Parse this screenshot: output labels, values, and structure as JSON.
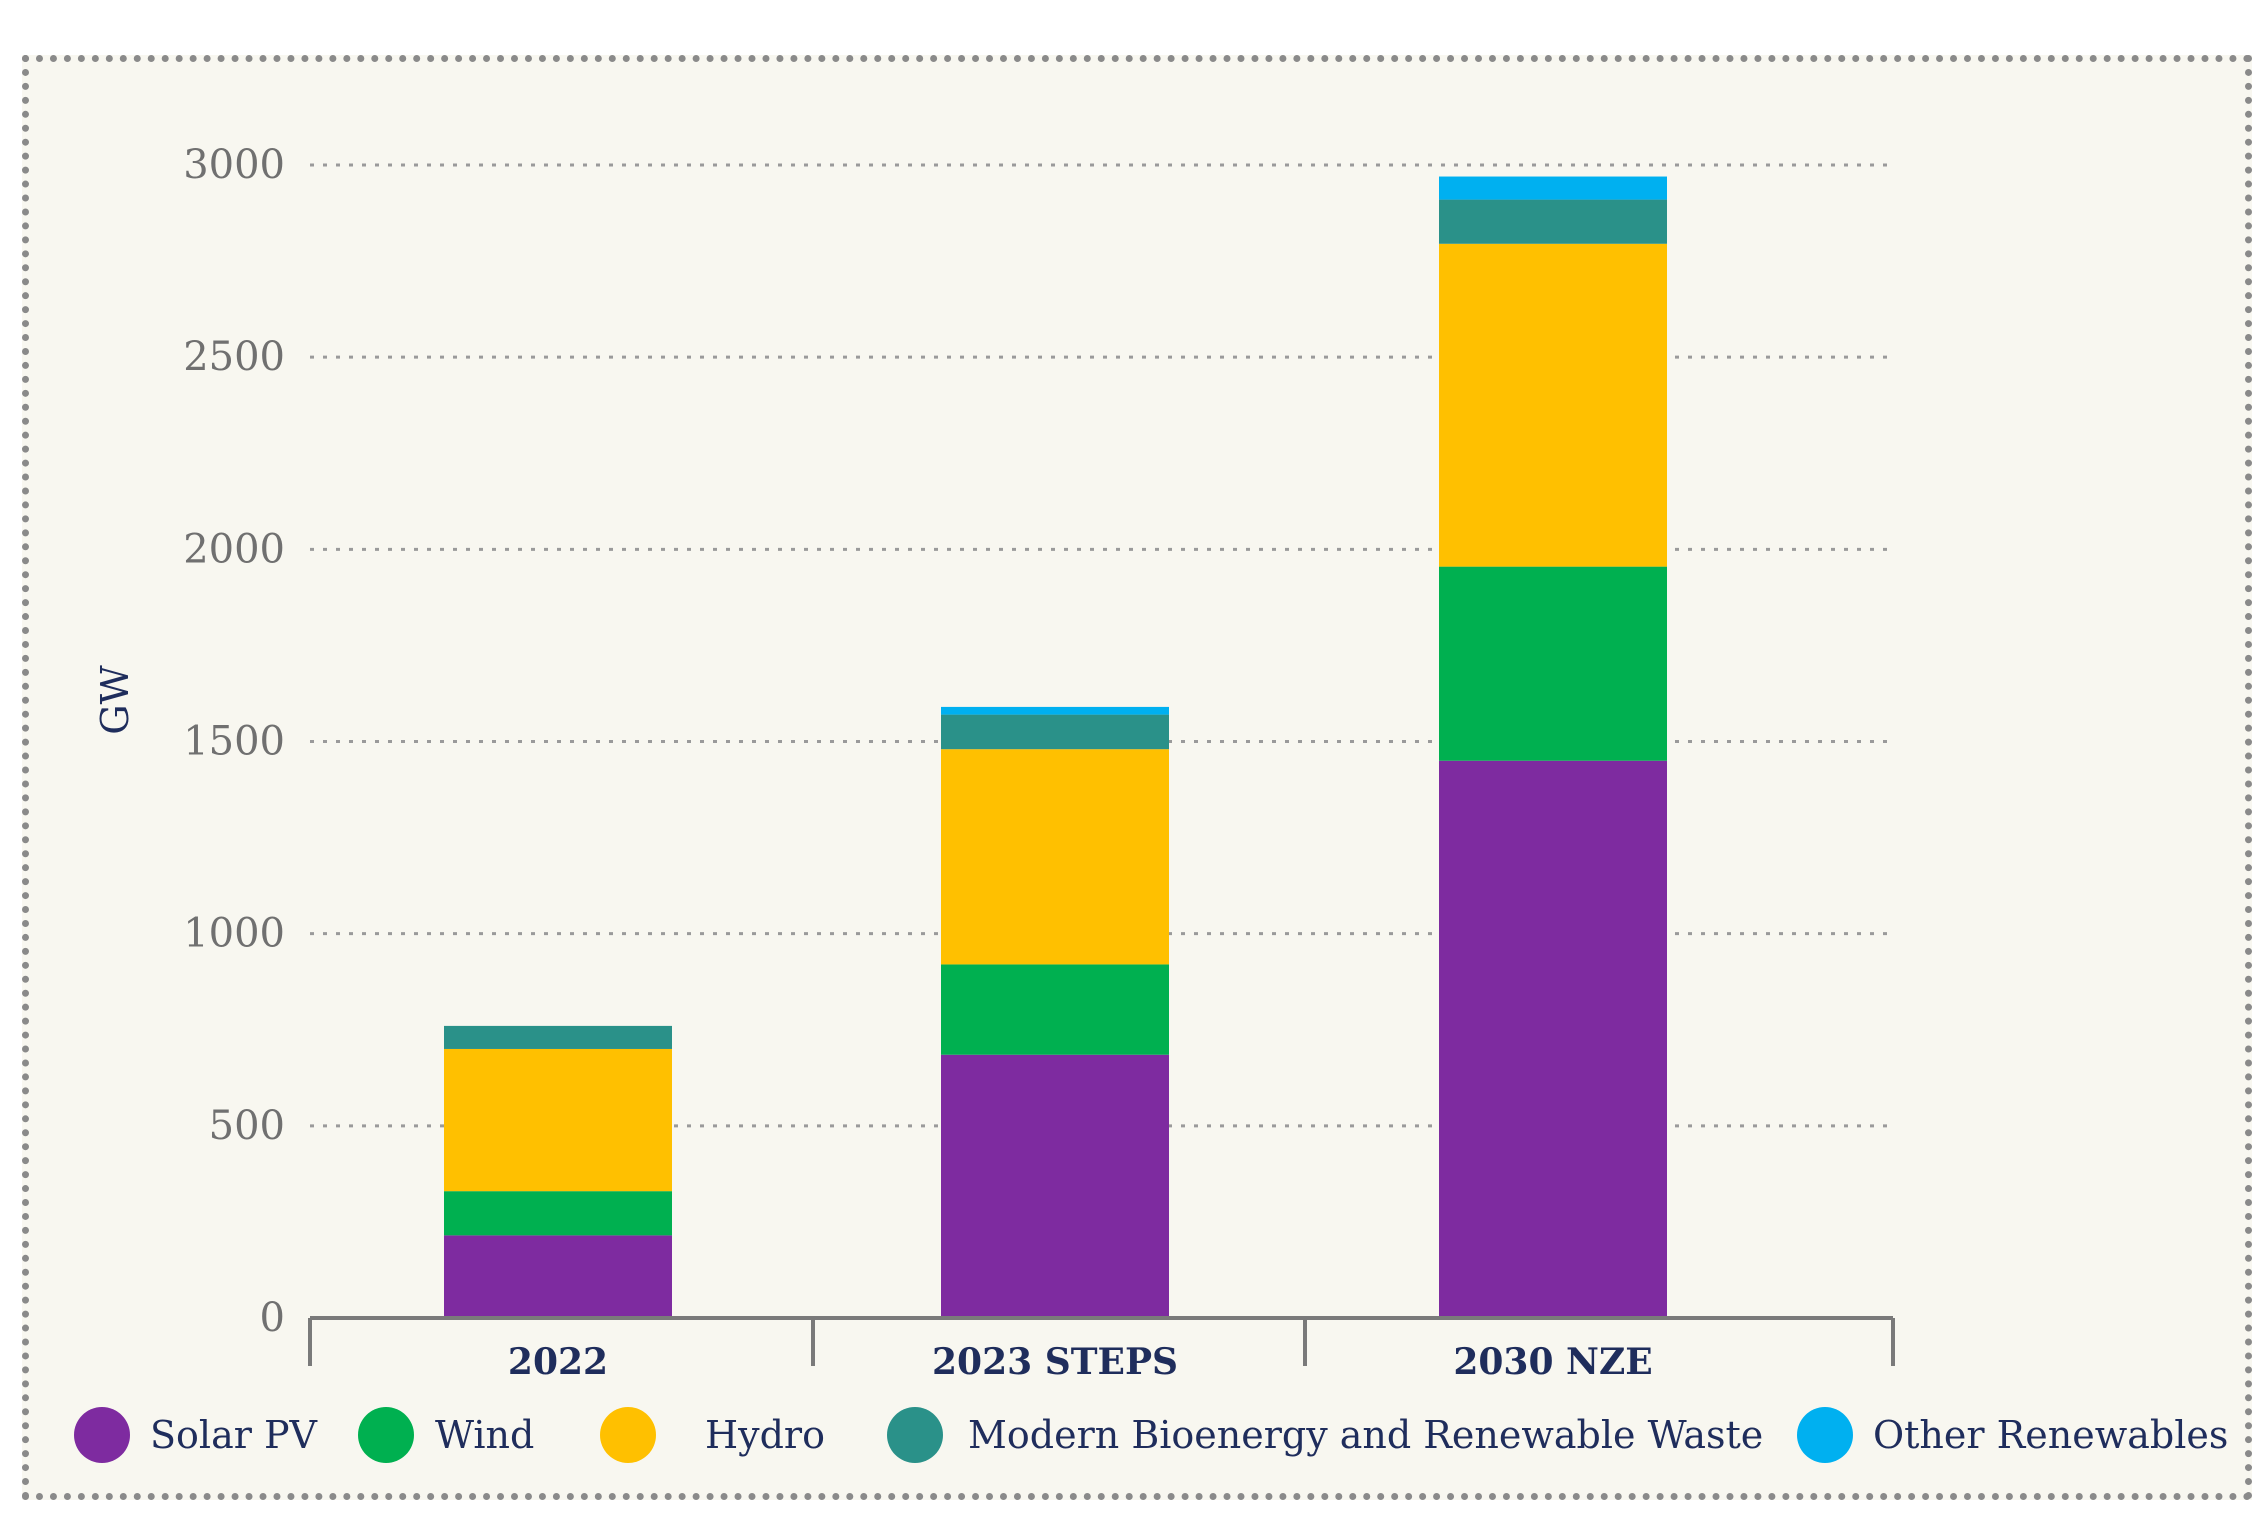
{
  "chart_data": {
    "type": "bar",
    "stacked": true,
    "ylabel": "GW",
    "ylim": [
      0,
      3000
    ],
    "yticks": [
      0,
      500,
      1000,
      1500,
      2000,
      2500,
      3000
    ],
    "grid": true,
    "categories": [
      "2022",
      "2023 STEPS",
      "2030 NZE"
    ],
    "series": [
      {
        "name": "Solar PV",
        "color": "#7e2ba0",
        "values": [
          215,
          685,
          1450
        ]
      },
      {
        "name": "Wind",
        "color": "#00b050",
        "values": [
          115,
          235,
          505
        ]
      },
      {
        "name": "Hydro",
        "color": "#ffc000",
        "values": [
          370,
          560,
          840
        ]
      },
      {
        "name": "Modern Bioenergy and Renewable Waste",
        "color": "#2a9189",
        "values": [
          60,
          90,
          115
        ]
      },
      {
        "name": "Other Renewables",
        "color": "#00b0f0",
        "values": [
          0,
          20,
          60
        ]
      }
    ],
    "legend_position": "bottom"
  }
}
